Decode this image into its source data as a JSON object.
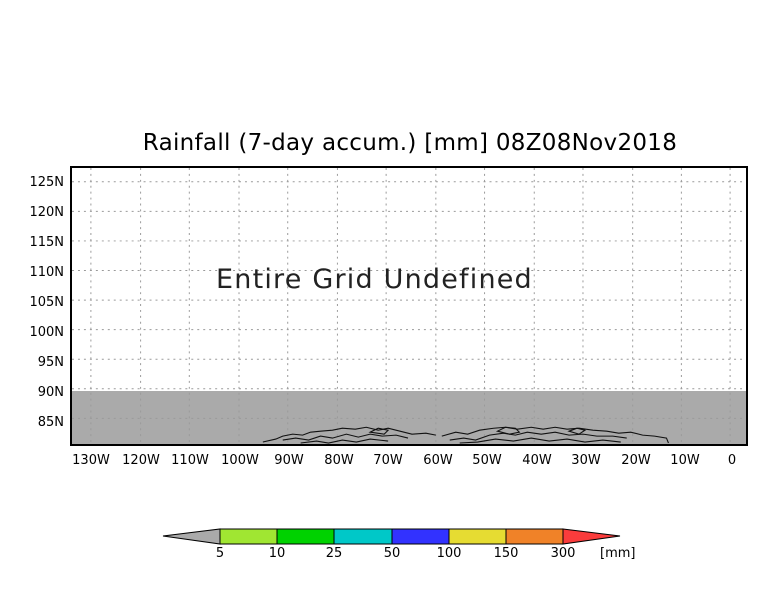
{
  "title": "Rainfall (7-day accum.) [mm] 08Z08Nov2018",
  "message": "Entire Grid Undefined",
  "y_ticks": [
    "125N",
    "120N",
    "115N",
    "110N",
    "105N",
    "100N",
    "95N",
    "90N",
    "85N"
  ],
  "x_ticks": [
    "130W",
    "120W",
    "110W",
    "100W",
    "90W",
    "80W",
    "70W",
    "60W",
    "50W",
    "40W",
    "30W",
    "20W",
    "10W",
    "0"
  ],
  "legend": {
    "labels": [
      "5",
      "10",
      "25",
      "50",
      "100",
      "150",
      "300"
    ],
    "unit": "[mm]",
    "colors": [
      "#aaaaaa",
      "#a0e632",
      "#00d200",
      "#00c8c8",
      "#3232ff",
      "#e6dc32",
      "#f08228",
      "#fa3c3c"
    ]
  },
  "colors": {
    "undefined_fill": "#aaaaaa",
    "grid": "#9a9a9a"
  }
}
